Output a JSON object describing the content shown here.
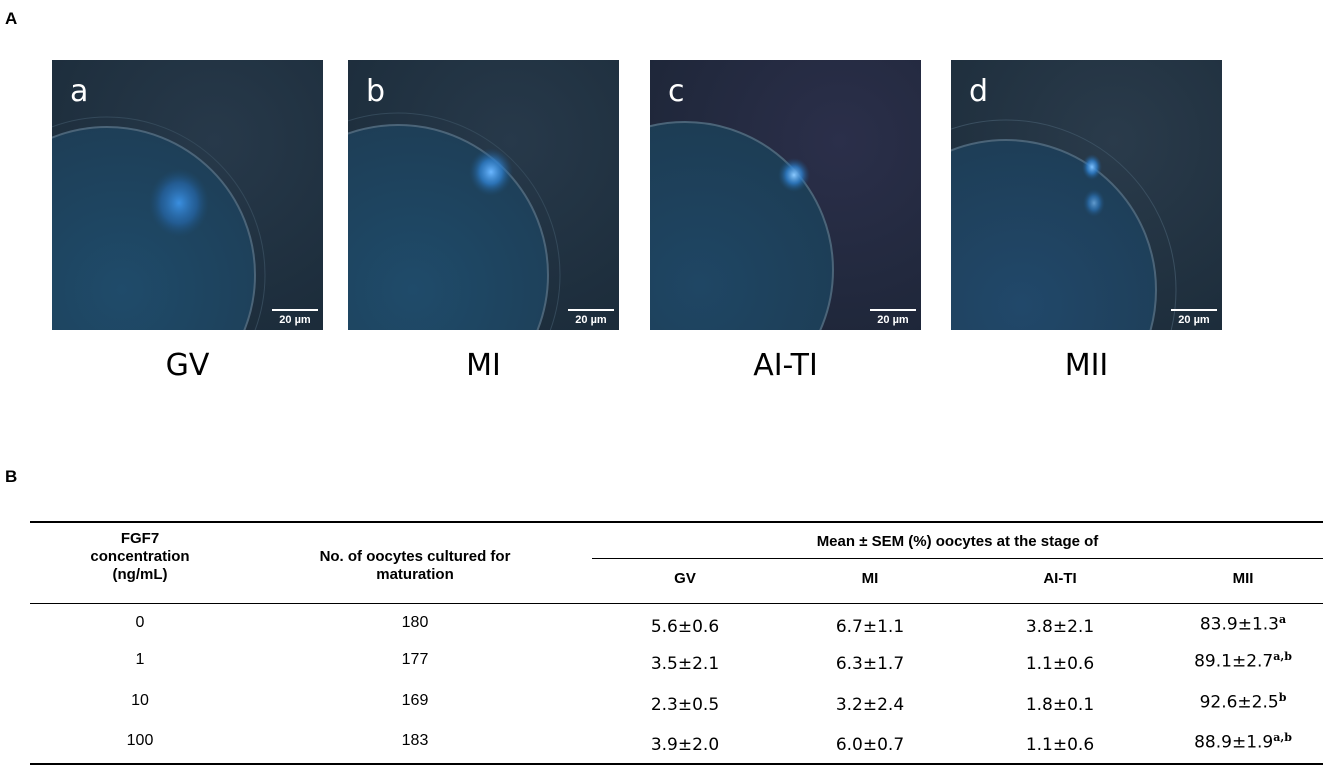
{
  "panel_a": {
    "label": "A",
    "images": [
      {
        "letter": "a",
        "scale_bar": "20 µm",
        "caption": "GV"
      },
      {
        "letter": "b",
        "scale_bar": "20 µm",
        "caption": "MI"
      },
      {
        "letter": "c",
        "scale_bar": "20 µm",
        "caption": "AI-TI"
      },
      {
        "letter": "d",
        "scale_bar": "20 µm",
        "caption": "MII"
      }
    ]
  },
  "panel_b": {
    "label": "B",
    "headers": {
      "concentration_line1": "FGF7",
      "concentration_line2": "concentration",
      "concentration_line3": "(ng/mL)",
      "oocytes_line1": "No. of oocytes cultured for",
      "oocytes_line2": "maturation",
      "group_header": "Mean ± SEM (%) oocytes at the stage of",
      "gv": "GV",
      "mi": "MI",
      "ai_ti": "AI-TI",
      "mii": "MII"
    },
    "rows": [
      {
        "concentration": "0",
        "oocytes": "180",
        "gv": "5.6±0.6",
        "mi": "6.7±1.1",
        "ai_ti": "3.8±2.1",
        "mii": "83.9±1.3",
        "mii_sup": "a"
      },
      {
        "concentration": "1",
        "oocytes": "177",
        "gv": "3.5±2.1",
        "mi": "6.3±1.7",
        "ai_ti": "1.1±0.6",
        "mii": "89.1±2.7",
        "mii_sup": "a,b"
      },
      {
        "concentration": "10",
        "oocytes": "169",
        "gv": "2.3±0.5",
        "mi": "3.2±2.4",
        "ai_ti": "1.8±0.1",
        "mii": "92.6±2.5",
        "mii_sup": "b"
      },
      {
        "concentration": "100",
        "oocytes": "183",
        "gv": "3.9±2.0",
        "mi": "6.0±0.7",
        "ai_ti": "1.1±0.6",
        "mii": "88.9±1.9",
        "mii_sup": "a,b"
      }
    ]
  }
}
